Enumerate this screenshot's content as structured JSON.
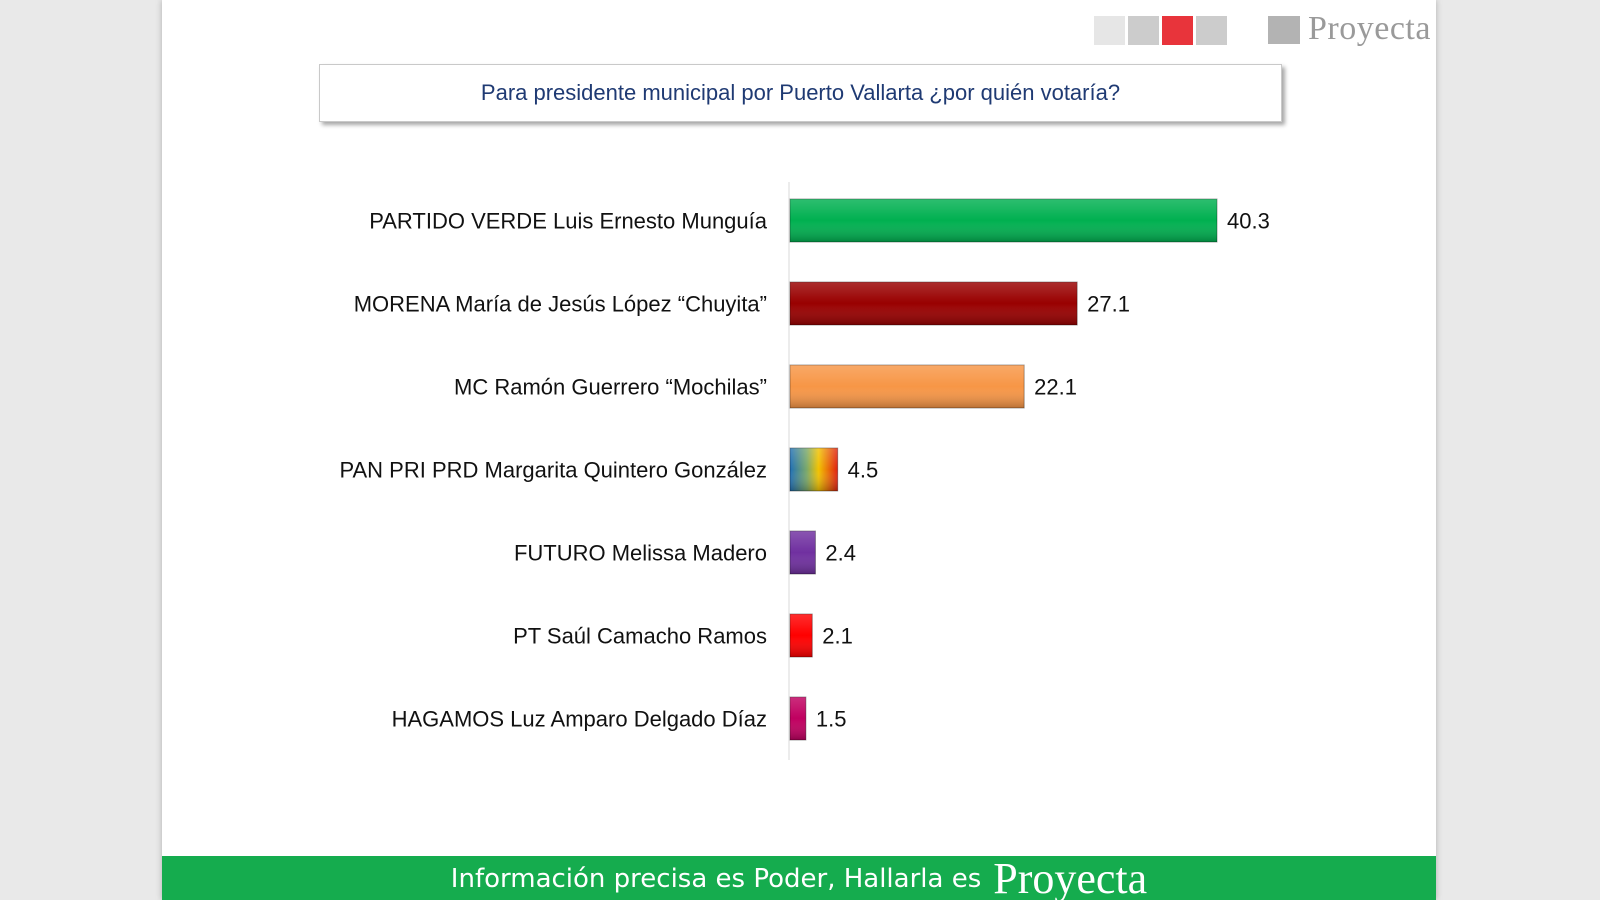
{
  "header": {
    "squares": [
      "#e6e6e6",
      "#cccccc",
      "#e8343b",
      "#cccccc"
    ],
    "logo_text": "Proyecta"
  },
  "question": "Para presidente municipal por Puerto Vallarta ¿por quién votaría?",
  "chart_data": {
    "type": "bar",
    "orientation": "horizontal",
    "categories": [
      "PARTIDO VERDE Luis Ernesto Munguía",
      "MORENA María de Jesús López “Chuyita”",
      "MC Ramón Guerrero “Mochilas”",
      "PAN PRI PRD Margarita Quintero González",
      "FUTURO Melissa Madero",
      "PT Saúl Camacho Ramos",
      "HAGAMOS Luz Amparo Delgado Díaz"
    ],
    "values": [
      40.3,
      27.1,
      22.1,
      4.5,
      2.4,
      2.1,
      1.5
    ],
    "value_labels": [
      "40.3",
      "27.1",
      "22.1",
      "4.5",
      "2.4",
      "2.1",
      "1.5"
    ],
    "colors": [
      "#00b050",
      "#990000",
      "#f79646",
      "gradient",
      "#7030a0",
      "#ff0000",
      "#c00060"
    ],
    "title": "",
    "xlabel": "",
    "ylabel": "",
    "xlim": [
      0,
      40.3
    ],
    "grid": false,
    "legend": "none"
  },
  "footer": {
    "text": "Información precisa es Poder, Hallarla es",
    "brand": "Proyecta"
  }
}
